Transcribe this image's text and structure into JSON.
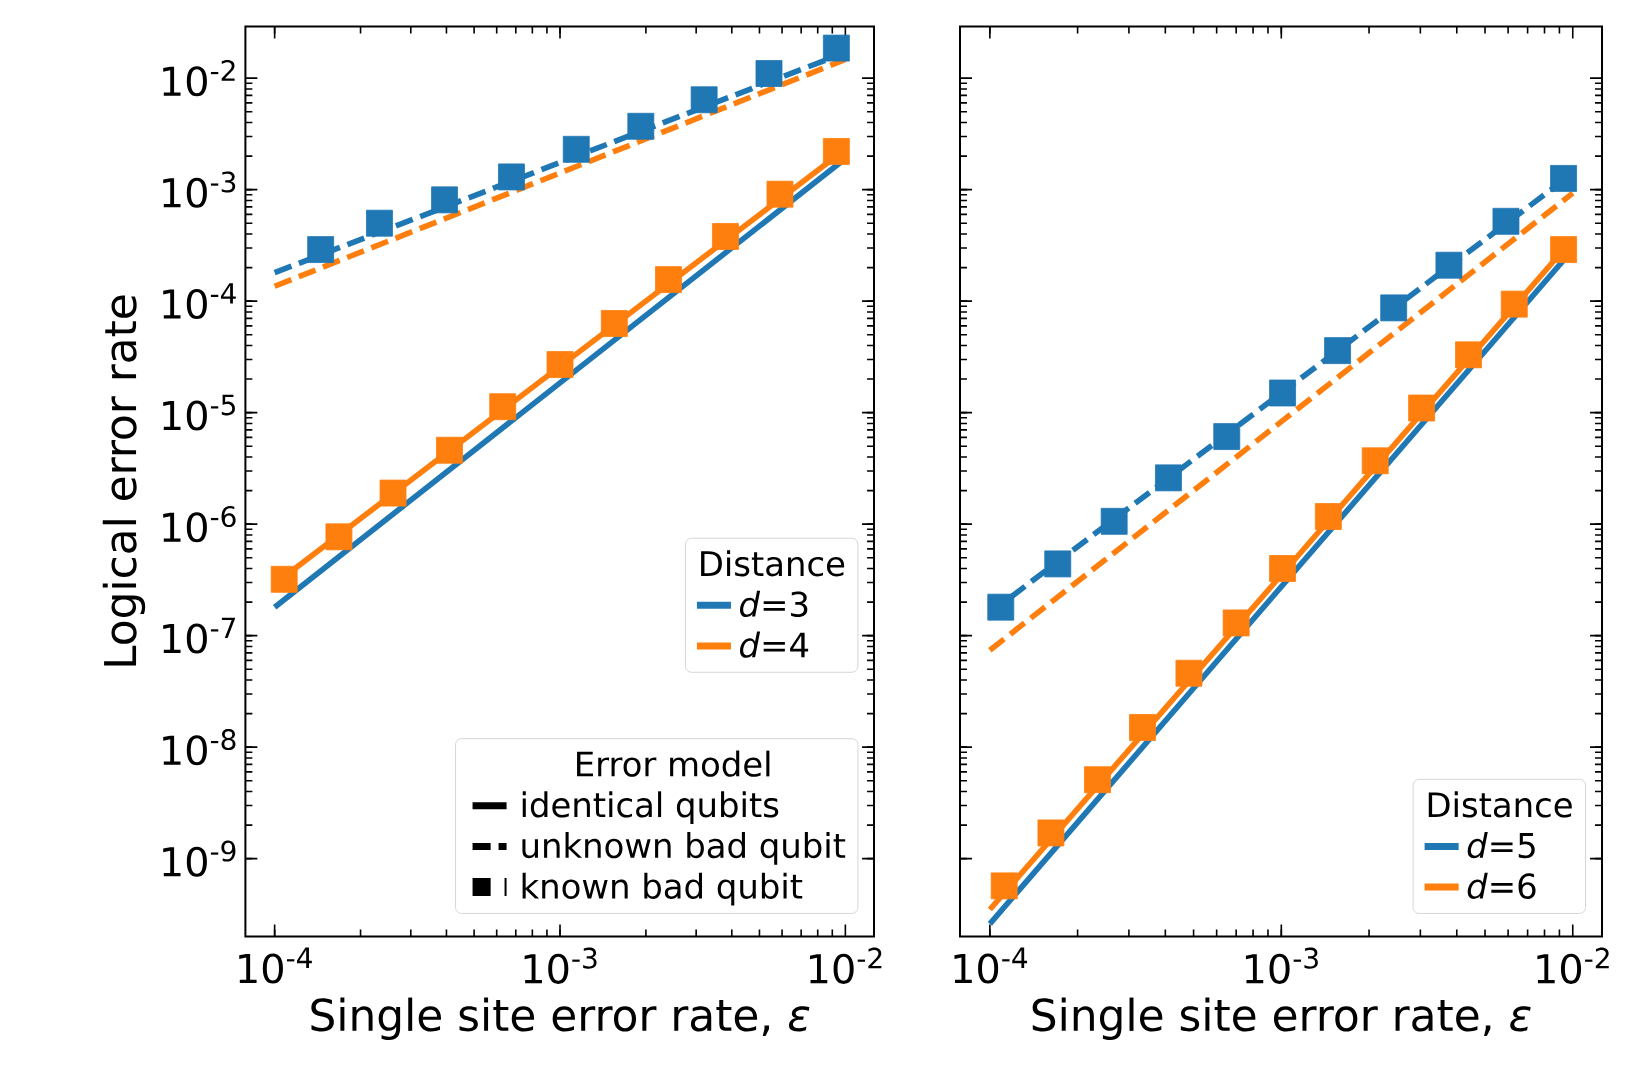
{
  "chart_data": [
    {
      "type": "line",
      "ylabel": "Logical error rate",
      "xlabel": "Single site error rate, *ε*",
      "log": "xy",
      "legend": "right",
      "legend_title": "Distance",
      "xlim": [
        7.9e-05,
        0.0126
      ],
      "ylim": [
        2e-10,
        0.029
      ],
      "xticks": [
        {
          "value": 0.0001,
          "label": "10$^{-4}$"
        },
        {
          "value": 0.001,
          "label": "10$^{-3}$"
        },
        {
          "value": 0.01,
          "label": "10$^{-2}$"
        }
      ],
      "yticks": [
        {
          "value": 1e-09,
          "label": "10$^{-9}$"
        },
        {
          "value": 1e-08,
          "label": "10$^{-8}$"
        },
        {
          "value": 1e-07,
          "label": "10$^{-7}$"
        },
        {
          "value": 1e-06,
          "label": "10$^{-6}$"
        },
        {
          "value": 1e-05,
          "label": "10$^{-5}$"
        },
        {
          "value": 0.0001,
          "label": "10$^{-4}$"
        },
        {
          "value": 0.001,
          "label": "10$^{-3}$"
        },
        {
          "value": 0.01,
          "label": "10$^{-2}$"
        }
      ],
      "annotations": [
        "Error model",
        "identical qubits",
        "unknown bad qubit",
        "known bad qubit"
      ],
      "series": [
        {
          "name": "*d*=3",
          "line_style": "solid",
          "color": "#1f77b4",
          "x": [
            0.0001,
            0.001,
            0.01
          ],
          "values": [
            1.8e-07,
            1.85e-05,
            0.0019
          ]
        },
        {
          "line_style": "dashed",
          "color": "#1f77b4",
          "x": [
            0.0001,
            0.001,
            0.01
          ],
          "values": [
            0.00018,
            0.00175,
            0.017
          ]
        },
        {
          "type": "scatter",
          "marker": "square",
          "color": "#1f77b4",
          "x": [
            0.000145,
            0.000233,
            0.000394,
            0.000676,
            0.00114,
            0.00192,
            0.0032,
            0.0054,
            0.0093
          ],
          "values": [
            0.00029,
            0.0005,
            0.00081,
            0.0013,
            0.0023,
            0.0037,
            0.0064,
            0.011,
            0.0186
          ]
        },
        {
          "name": "*d*=4",
          "line_style": "solid",
          "color": "#ff7f0e",
          "x": [
            0.0001,
            0.001,
            0.01
          ],
          "values": [
            2.9e-07,
            2.6e-05,
            0.0023
          ]
        },
        {
          "line_style": "dashed",
          "color": "#ff7f0e",
          "x": [
            0.0001,
            0.001,
            0.01
          ],
          "values": [
            0.000136,
            0.00141,
            0.0147
          ]
        },
        {
          "type": "scatter",
          "marker": "square",
          "color": "#ff7f0e",
          "x": [
            0.000108,
            0.000168,
            0.00026,
            0.00041,
            0.00063,
            0.001,
            0.00155,
            0.0024,
            0.0038,
            0.0059,
            0.0093
          ],
          "values": [
            3.2e-07,
            7.7e-07,
            1.9e-06,
            4.6e-06,
            1.13e-05,
            2.7e-05,
            6.3e-05,
            0.000156,
            0.00038,
            0.00091,
            0.0022
          ]
        }
      ]
    },
    {
      "type": "line",
      "xlabel": "Single site error rate, *ε*",
      "log": "xy",
      "legend": "bottom right",
      "legend_title": "Distance",
      "tick_labels": "x",
      "xlim": [
        7.9e-05,
        0.0126
      ],
      "ylim": [
        2e-10,
        0.029
      ],
      "xticks": [
        {
          "value": 0.0001,
          "label": "10$^{-4}$"
        },
        {
          "value": 0.001,
          "label": "10$^{-3}$"
        },
        {
          "value": 0.01,
          "label": "10$^{-2}$"
        }
      ],
      "yticks": [
        {
          "value": 1e-09,
          "label": null
        },
        {
          "value": 1e-08,
          "label": null
        },
        {
          "value": 1e-07,
          "label": null
        },
        {
          "value": 1e-06,
          "label": null
        },
        {
          "value": 1e-05,
          "label": null
        },
        {
          "value": 0.0001,
          "label": null
        },
        {
          "value": 0.001,
          "label": null
        },
        {
          "value": 0.01,
          "label": null
        }
      ],
      "series": [
        {
          "name": "*d*=5",
          "line_style": "solid",
          "color": "#1f77b4",
          "x": [
            0.0001,
            0.01
          ],
          "values": [
            2.6e-10,
            0.00029
          ]
        },
        {
          "line_style": "dashed",
          "color": "#1f77b4",
          "x": [
            0.0001,
            0.001,
            0.01
          ],
          "values": [
            1.6e-07,
            1.5e-05,
            0.0014
          ]
        },
        {
          "type": "scatter",
          "marker": "square",
          "color": "#1f77b4",
          "x": [
            0.000109,
            0.000171,
            0.000267,
            0.00041,
            0.00065,
            0.00101,
            0.00156,
            0.00243,
            0.00376,
            0.0059,
            0.0093
          ],
          "values": [
            1.8e-07,
            4.4e-07,
            1.06e-06,
            2.6e-06,
            6.1e-06,
            1.5e-05,
            3.6e-05,
            8.7e-05,
            0.00021,
            0.00052,
            0.00126
          ]
        },
        {
          "name": "*d*=6",
          "line_style": "solid",
          "color": "#ff7f0e",
          "x": [
            0.0001,
            0.001,
            0.01
          ],
          "values": [
            3.5e-10,
            3.5e-07,
            0.00036
          ]
        },
        {
          "line_style": "dashed",
          "color": "#ff7f0e",
          "x": [
            0.0001,
            0.001,
            0.01
          ],
          "values": [
            7.4e-08,
            8.3e-06,
            0.00093
          ]
        },
        {
          "type": "scatter",
          "marker": "square",
          "color": "#ff7f0e",
          "x": [
            0.000112,
            0.000162,
            0.000234,
            0.000334,
            0.000482,
            0.0007,
            0.00101,
            0.00145,
            0.0021,
            0.00303,
            0.00439,
            0.0063,
            0.0093
          ],
          "values": [
            5.7e-10,
            1.7e-09,
            5.1e-09,
            1.5e-08,
            4.6e-08,
            1.3e-07,
            4e-07,
            1.17e-06,
            3.7e-06,
            1.1e-05,
            3.3e-05,
            9.4e-05,
            0.00029
          ]
        }
      ]
    }
  ]
}
